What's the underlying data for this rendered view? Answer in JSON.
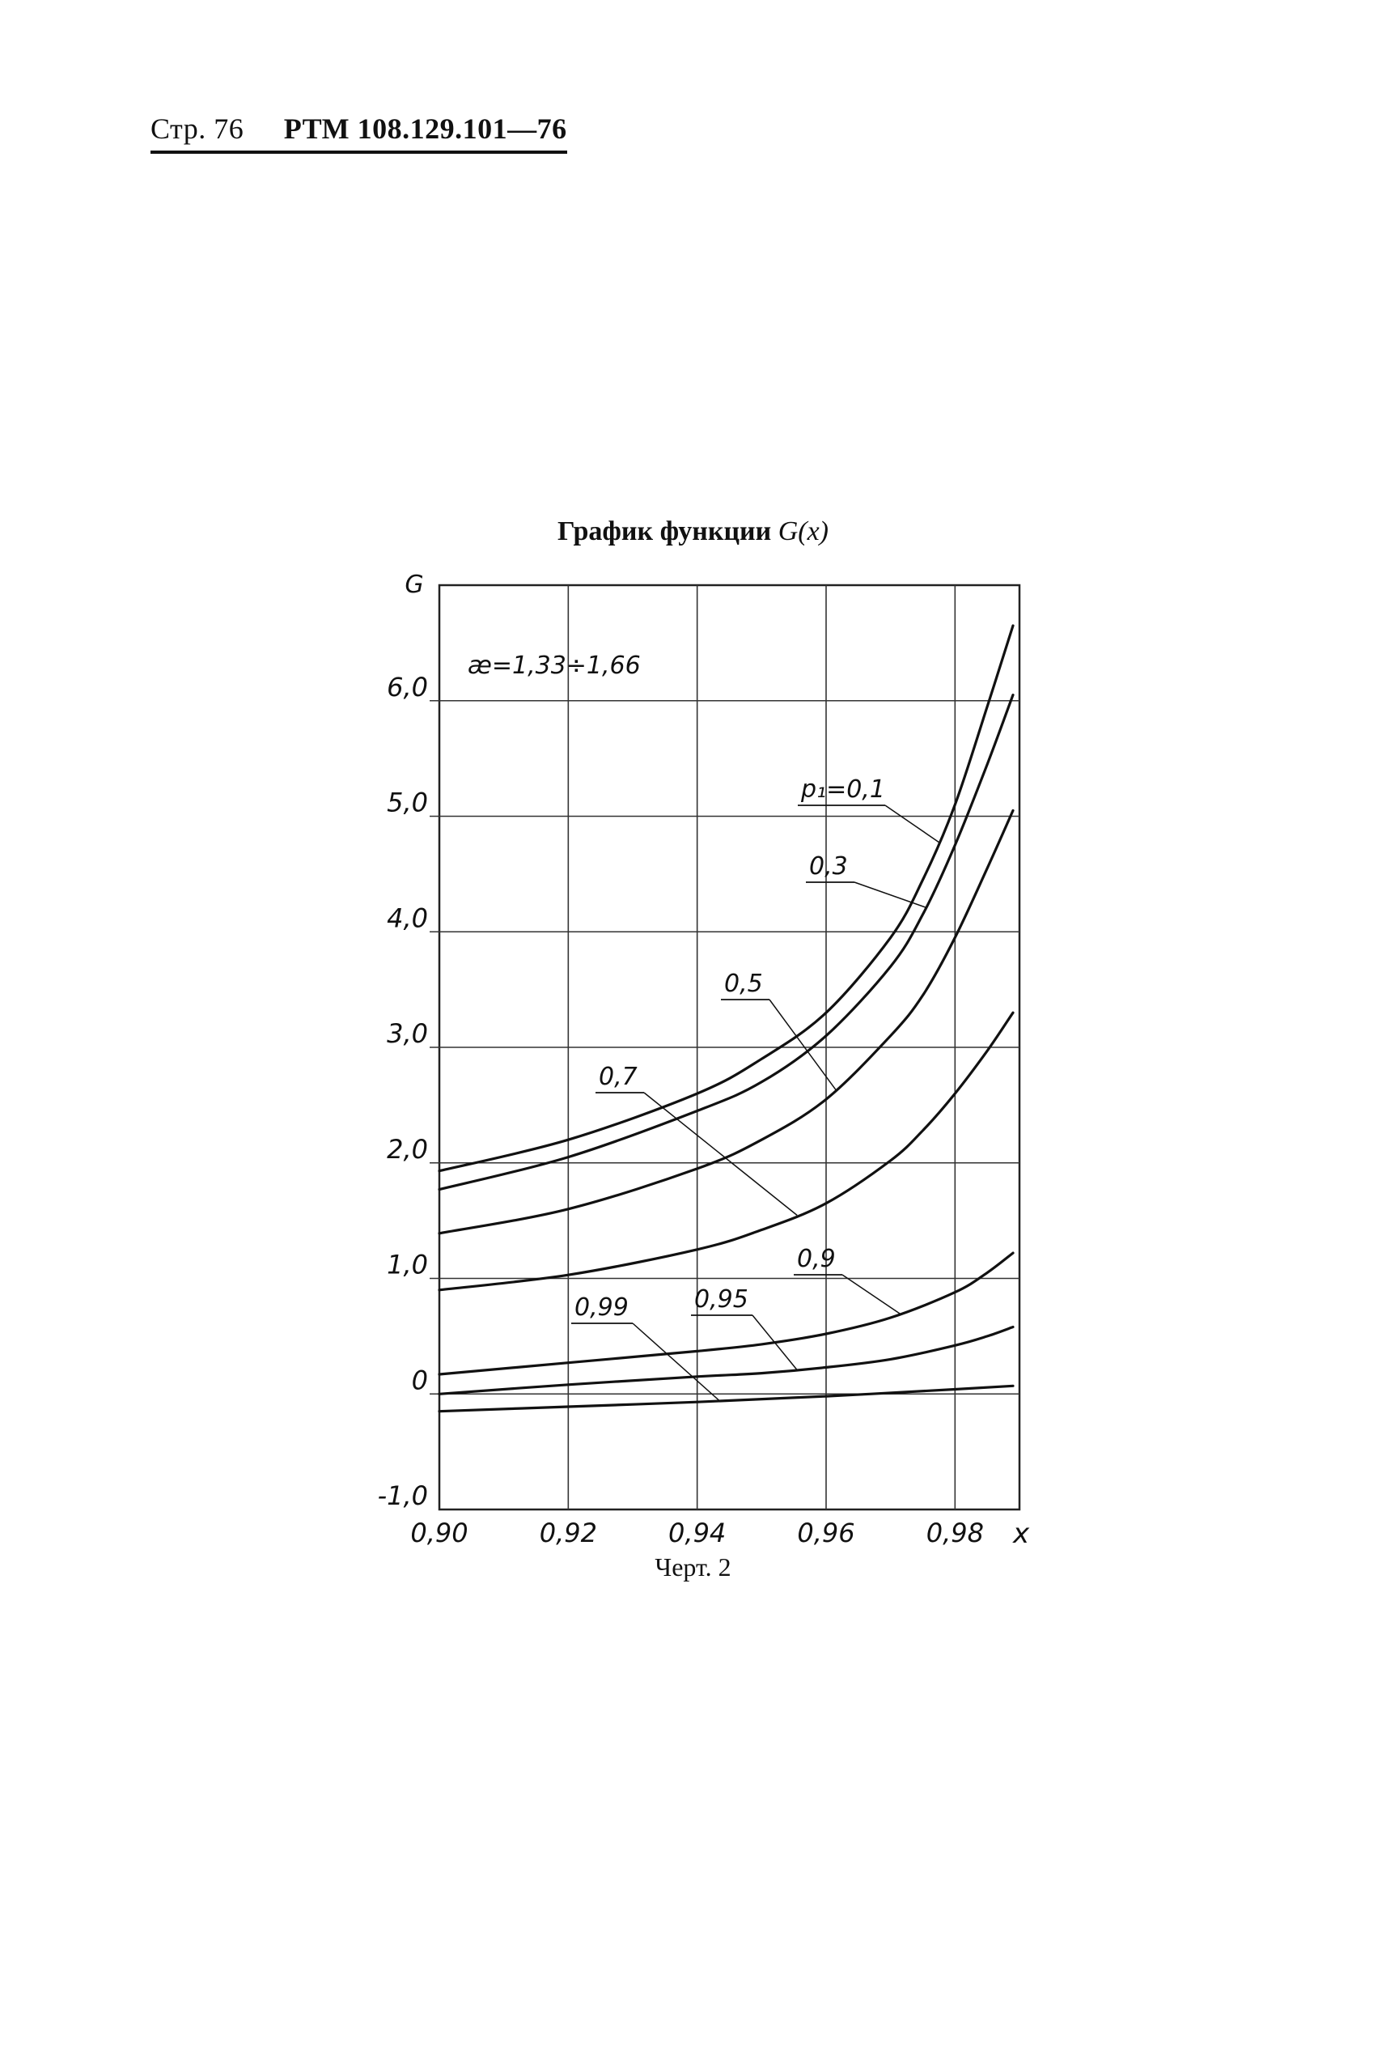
{
  "header": {
    "page_label": "Стр. 76",
    "doc_code": "РТМ 108.129.101—76"
  },
  "title": {
    "prefix": "График функции",
    "function": "G(x)"
  },
  "caption": "Черт. 2",
  "chart_data": {
    "type": "line",
    "title": "График функции G(x)",
    "xlabel": "x",
    "ylabel": "G",
    "xlim": [
      0.9,
      0.99
    ],
    "ylim": [
      -1.0,
      7.0
    ],
    "x_ticks": [
      0.9,
      0.92,
      0.94,
      0.96,
      0.98
    ],
    "x_tick_labels": [
      "0,90",
      "0,92",
      "0,94",
      "0,96",
      "0,98"
    ],
    "y_ticks": [
      -1.0,
      0,
      1.0,
      2.0,
      3.0,
      4.0,
      5.0,
      6.0
    ],
    "y_tick_labels": [
      "-1,0",
      "0",
      "1,0",
      "2,0",
      "3,0",
      "4,0",
      "5,0",
      "6,0"
    ],
    "grid": true,
    "annotation": "æ=1,33÷1,66",
    "series_prefix": "p₁=",
    "series": [
      {
        "name": "0,1",
        "x": [
          0.9,
          0.92,
          0.94,
          0.95,
          0.96,
          0.97,
          0.975,
          0.98,
          0.985,
          0.989
        ],
        "y": [
          1.93,
          2.2,
          2.6,
          2.9,
          3.3,
          3.95,
          4.45,
          5.1,
          5.95,
          6.65
        ]
      },
      {
        "name": "0,3",
        "x": [
          0.9,
          0.92,
          0.94,
          0.95,
          0.96,
          0.97,
          0.975,
          0.98,
          0.985,
          0.989
        ],
        "y": [
          1.77,
          2.05,
          2.45,
          2.7,
          3.1,
          3.7,
          4.15,
          4.75,
          5.45,
          6.05
        ]
      },
      {
        "name": "0,5",
        "x": [
          0.9,
          0.92,
          0.94,
          0.95,
          0.96,
          0.97,
          0.975,
          0.98,
          0.985,
          0.989
        ],
        "y": [
          1.39,
          1.6,
          1.95,
          2.2,
          2.55,
          3.1,
          3.45,
          3.95,
          4.55,
          5.05
        ]
      },
      {
        "name": "0,7",
        "x": [
          0.9,
          0.92,
          0.94,
          0.95,
          0.96,
          0.97,
          0.975,
          0.98,
          0.985,
          0.989
        ],
        "y": [
          0.9,
          1.03,
          1.25,
          1.42,
          1.65,
          2.02,
          2.28,
          2.6,
          2.97,
          3.3
        ]
      },
      {
        "name": "0,9",
        "x": [
          0.9,
          0.92,
          0.94,
          0.95,
          0.96,
          0.97,
          0.98,
          0.985,
          0.989
        ],
        "y": [
          0.17,
          0.27,
          0.37,
          0.43,
          0.52,
          0.66,
          0.88,
          1.05,
          1.22
        ]
      },
      {
        "name": "0,95",
        "x": [
          0.9,
          0.92,
          0.94,
          0.95,
          0.96,
          0.97,
          0.98,
          0.985,
          0.989
        ],
        "y": [
          0.0,
          0.08,
          0.15,
          0.18,
          0.23,
          0.3,
          0.42,
          0.5,
          0.58
        ]
      },
      {
        "name": "0,99",
        "x": [
          0.9,
          0.92,
          0.94,
          0.96,
          0.98,
          0.989
        ],
        "y": [
          -0.15,
          -0.11,
          -0.07,
          -0.02,
          0.04,
          0.07
        ]
      }
    ]
  }
}
